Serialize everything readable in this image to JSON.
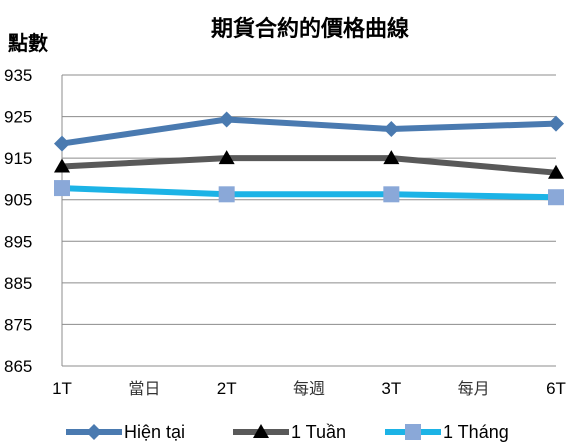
{
  "chart_data": {
    "type": "line",
    "title": "期貨合約的價格曲線",
    "ylabel": "點數",
    "xlabel": "",
    "ylim": [
      865,
      935
    ],
    "yticks": [
      935,
      925,
      915,
      905,
      895,
      885,
      875,
      865
    ],
    "grid": true,
    "legend_position": "bottom",
    "categories": [
      "1T",
      "2T",
      "3T",
      "6T"
    ],
    "category_notes": [
      "當日",
      "每週",
      "每月"
    ],
    "series": [
      {
        "name": "Hiện tại",
        "color": "#4a7ab0",
        "marker": "diamond",
        "values": [
          918.5,
          924.3,
          922.0,
          923.3
        ]
      },
      {
        "name": "1 Tuần",
        "color": "#595959",
        "marker": "triangle",
        "values": [
          913.0,
          915.0,
          915.0,
          911.5
        ]
      },
      {
        "name": "1 Tháng",
        "color": "#1cb3e6",
        "marker": "square",
        "values": [
          907.8,
          906.3,
          906.3,
          905.6
        ]
      }
    ]
  }
}
